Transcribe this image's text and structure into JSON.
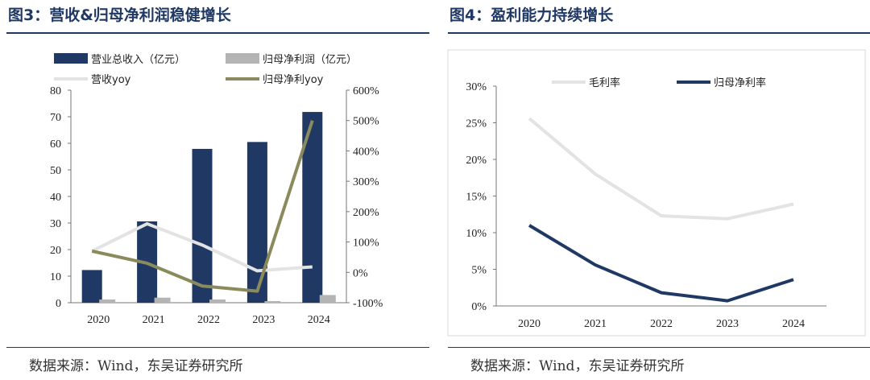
{
  "left": {
    "title": "图3：营收&归母净利润稳健增长",
    "source": "数据来源：Wind，东吴证券研究所",
    "chart_data": {
      "type": "bar",
      "categories": [
        "2020",
        "2021",
        "2022",
        "2023",
        "2024"
      ],
      "series": [
        {
          "name": "营业总收入（亿元）",
          "kind": "bar",
          "axis": "left",
          "color": "#1f3864",
          "values": [
            12.3,
            30.6,
            57.9,
            60.5,
            71.8
          ]
        },
        {
          "name": "归母净利润（亿元）",
          "kind": "bar",
          "axis": "left",
          "color": "#b4b4b4",
          "values": [
            1.2,
            1.9,
            1.2,
            0.6,
            2.9
          ]
        },
        {
          "name": "营收yoy",
          "kind": "line",
          "axis": "right",
          "color": "#e3e3e3",
          "values": [
            70,
            160,
            90,
            5,
            18
          ]
        },
        {
          "name": "归母净利yoy",
          "kind": "line",
          "axis": "right",
          "color": "#8b8a5c",
          "values": [
            70,
            30,
            -45,
            -62,
            500
          ]
        }
      ],
      "y_left": {
        "ticks": [
          "0",
          "10",
          "20",
          "30",
          "40",
          "50",
          "60",
          "70",
          "80"
        ],
        "ylim": [
          0,
          80
        ]
      },
      "y_right": {
        "ticks": [
          "-100%",
          "0%",
          "100%",
          "200%",
          "300%",
          "400%",
          "500%",
          "600%"
        ],
        "ylim": [
          -100,
          600
        ]
      },
      "legend_placement": "top"
    }
  },
  "right": {
    "title": "图4：盈利能力持续增长",
    "source": "数据来源：Wind，东吴证券研究所",
    "chart_data": {
      "type": "line",
      "categories": [
        "2020",
        "2021",
        "2022",
        "2023",
        "2024"
      ],
      "series": [
        {
          "name": "毛利率",
          "color": "#e3e3e3",
          "values": [
            25.6,
            18.0,
            12.3,
            11.9,
            13.9
          ]
        },
        {
          "name": "归母净利率",
          "color": "#1f3864",
          "values": [
            11.0,
            5.6,
            1.8,
            0.7,
            3.6
          ]
        }
      ],
      "y": {
        "ticks": [
          "0%",
          "5%",
          "10%",
          "15%",
          "20%",
          "25%",
          "30%"
        ],
        "ylim": [
          0,
          30
        ]
      },
      "legend_placement": "top"
    }
  }
}
